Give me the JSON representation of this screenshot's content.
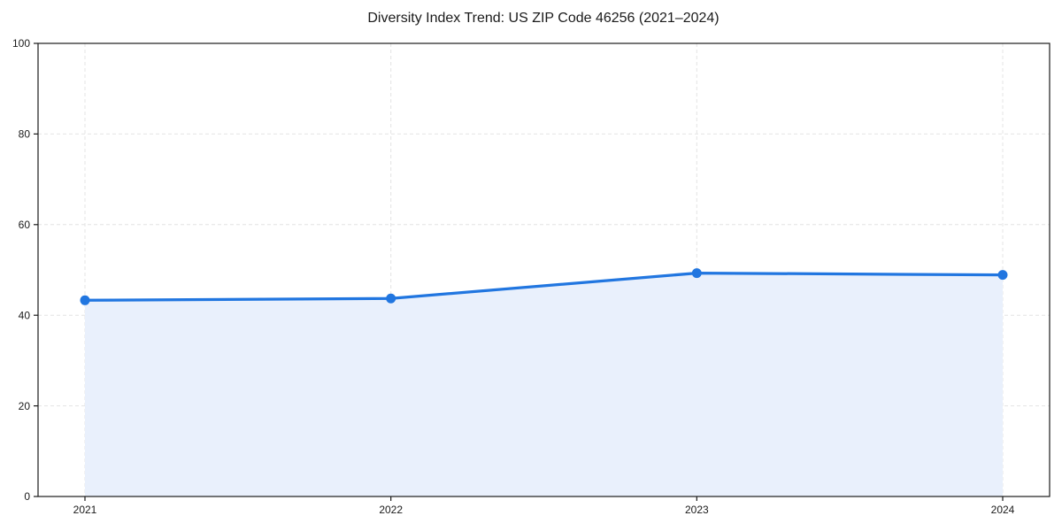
{
  "chart_data": {
    "type": "area",
    "title": "Diversity Index Trend: US ZIP Code 46256 (2021–2024)",
    "categories": [
      "2021",
      "2022",
      "2023",
      "2024"
    ],
    "series": [
      {
        "name": "Diversity Index",
        "values": [
          43.3,
          43.7,
          49.3,
          48.9
        ]
      }
    ],
    "xlabel": "",
    "ylabel": "",
    "ylim": [
      0,
      100
    ],
    "yticks": [
      0,
      20,
      40,
      60,
      80,
      100
    ],
    "grid": "dashed, horizontal and vertical",
    "legend": "none",
    "marker": "circle"
  },
  "colors": {
    "line": "#2176e0",
    "marker": "#2176e0",
    "area_fill": "#e9f0fc",
    "grid": "#e4e4e4",
    "spine": "#1a1a1a",
    "text": "#1a1a1a",
    "background": "#ffffff"
  }
}
